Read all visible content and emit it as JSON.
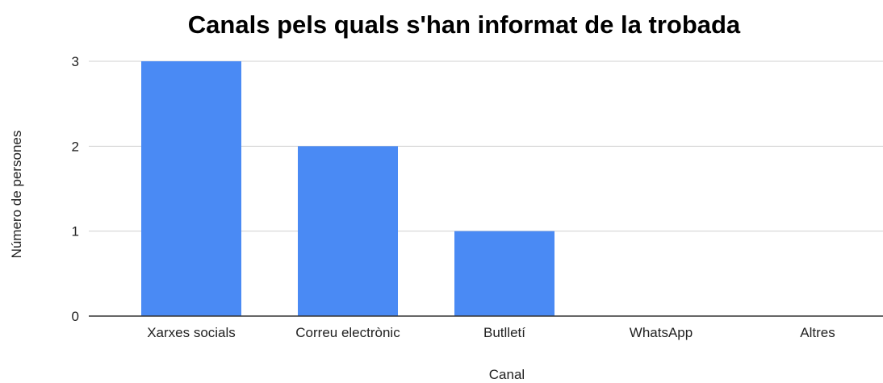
{
  "chart_data": {
    "type": "bar",
    "title": "Canals pels quals s'han informat de la trobada",
    "xlabel": "Canal",
    "ylabel": "Número de persones",
    "categories": [
      "Xarxes socials",
      "Correu electrònic",
      "Butlletí",
      "WhatsApp",
      "Altres"
    ],
    "values": [
      3,
      2,
      1,
      0,
      0
    ],
    "ylim": [
      0,
      3
    ],
    "yticks": [
      0,
      1,
      2,
      3
    ],
    "grid": true,
    "legend": "none",
    "colors": {
      "bar": "#4a8af4",
      "grid": "#d0d0d0",
      "baseline": "#333333"
    }
  }
}
